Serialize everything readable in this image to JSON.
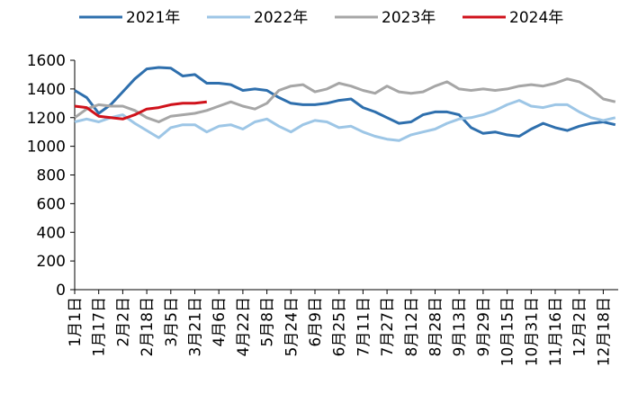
{
  "chart_data": {
    "type": "line",
    "categories": [
      "1月1日",
      null,
      "1月17日",
      null,
      "2月2日",
      null,
      "2月18日",
      null,
      "3月5日",
      null,
      "3月21日",
      null,
      "4月6日",
      null,
      "4月22日",
      null,
      "5月8日",
      null,
      "5月24日",
      null,
      "6月9日",
      null,
      "6月25日",
      null,
      "7月11日",
      null,
      "7月27日",
      null,
      "8月12日",
      null,
      "8月28日",
      null,
      "9月13日",
      null,
      "9月29日",
      null,
      "10月15日",
      null,
      "10月31日",
      null,
      "11月16日",
      null,
      "12月2日",
      null,
      "12月18日",
      null
    ],
    "series": [
      {
        "name": "2021年",
        "color": "#2e6fad",
        "values": [
          1390,
          1340,
          1230,
          1290,
          1380,
          1470,
          1540,
          1550,
          1545,
          1490,
          1500,
          1440,
          1440,
          1430,
          1390,
          1400,
          1390,
          1340,
          1300,
          1290,
          1290,
          1300,
          1320,
          1330,
          1270,
          1240,
          1200,
          1160,
          1170,
          1220,
          1240,
          1240,
          1220,
          1130,
          1090,
          1100,
          1080,
          1070,
          1120,
          1160,
          1130,
          1110,
          1140,
          1160,
          1170,
          1150
        ]
      },
      {
        "name": "2022年",
        "color": "#9dc6e6",
        "values": [
          1170,
          1190,
          1170,
          1200,
          1220,
          1160,
          1110,
          1060,
          1130,
          1150,
          1150,
          1100,
          1140,
          1150,
          1120,
          1170,
          1190,
          1140,
          1100,
          1150,
          1180,
          1170,
          1130,
          1140,
          1100,
          1070,
          1050,
          1040,
          1080,
          1100,
          1120,
          1160,
          1190,
          1200,
          1220,
          1250,
          1290,
          1320,
          1280,
          1270,
          1290,
          1290,
          1240,
          1200,
          1180,
          1200
        ]
      },
      {
        "name": "2023年",
        "color": "#a6a6a6",
        "values": [
          1200,
          1260,
          1290,
          1280,
          1280,
          1250,
          1200,
          1170,
          1210,
          1220,
          1230,
          1250,
          1280,
          1310,
          1280,
          1260,
          1300,
          1390,
          1420,
          1430,
          1380,
          1400,
          1440,
          1420,
          1390,
          1370,
          1420,
          1380,
          1370,
          1380,
          1420,
          1450,
          1400,
          1390,
          1400,
          1390,
          1400,
          1420,
          1430,
          1420,
          1440,
          1470,
          1450,
          1400,
          1330,
          1310
        ]
      },
      {
        "name": "2024年",
        "color": "#d0121b",
        "values": [
          1280,
          1270,
          1210,
          1200,
          1190,
          1220,
          1260,
          1270,
          1290,
          1300,
          1300,
          1310,
          null,
          null,
          null,
          null,
          null,
          null,
          null,
          null,
          null,
          null,
          null,
          null,
          null,
          null,
          null,
          null,
          null,
          null,
          null,
          null,
          null,
          null,
          null,
          null,
          null,
          null,
          null,
          null,
          null,
          null,
          null,
          null,
          null,
          null
        ]
      }
    ],
    "ylim": [
      0,
      1600
    ],
    "yticks": [
      0,
      200,
      400,
      600,
      800,
      1000,
      1200,
      1400,
      1600
    ],
    "legend": "top"
  }
}
